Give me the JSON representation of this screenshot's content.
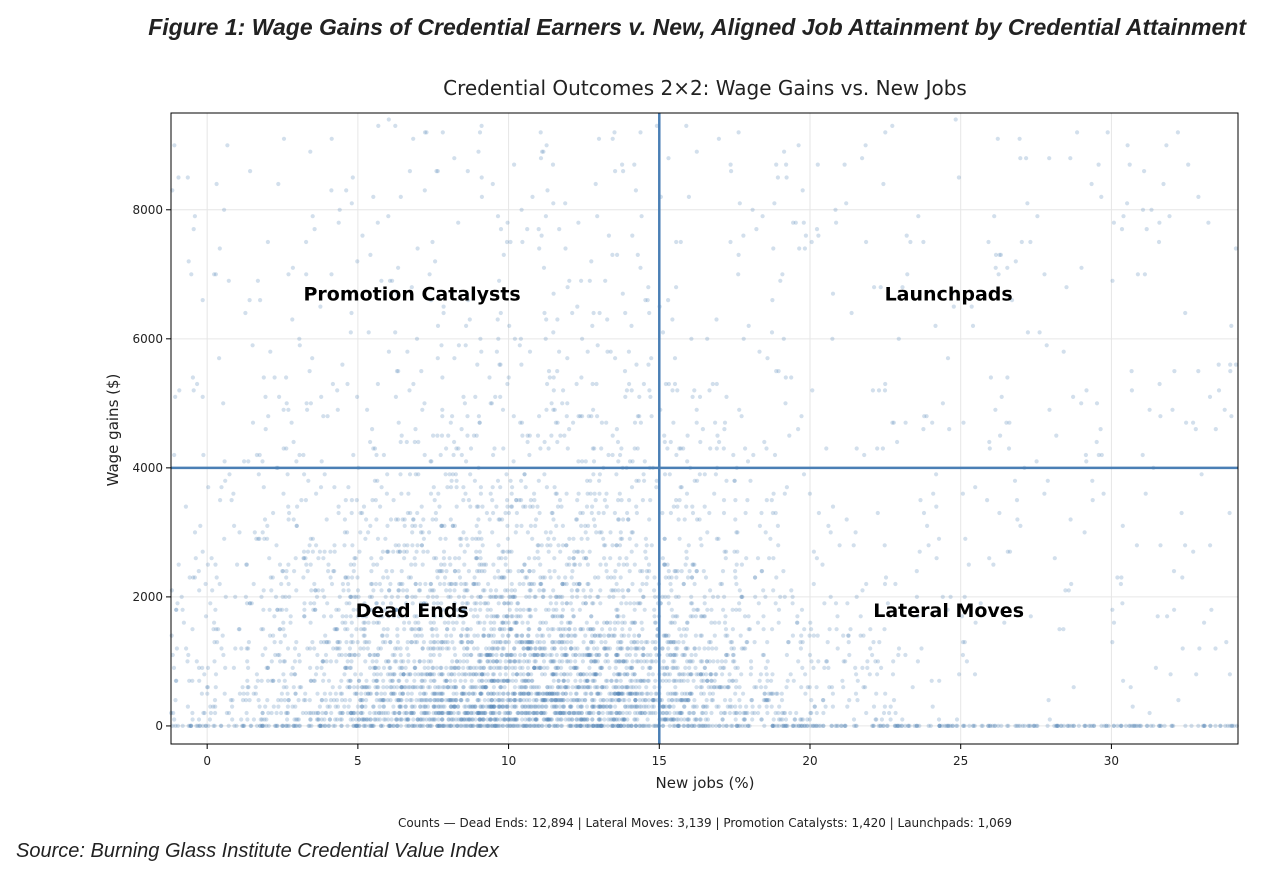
{
  "figure_title": "Figure 1: Wage Gains of Credential Earners v. New, Aligned Job Attainment by Credential Attainment",
  "source": "Source: Burning Glass Institute Credential Value Index",
  "colors": {
    "points": "#4a7fb5",
    "divider": "#4a7fb5",
    "grid": "#e6e6e6"
  },
  "chart_data": {
    "type": "scatter",
    "title": "Credential Outcomes 2×2: Wage Gains vs. New Jobs",
    "xlabel": "New jobs (%)",
    "ylabel": "Wage gains ($)",
    "xlim": [
      -1.2,
      34.2
    ],
    "ylim": [
      -280,
      9500
    ],
    "xticks": [
      0,
      5,
      10,
      15,
      20,
      25,
      30
    ],
    "yticks": [
      0,
      2000,
      4000,
      6000,
      8000
    ],
    "grid": true,
    "thresholds": {
      "x": 15,
      "y": 4000
    },
    "quadrants": [
      {
        "label": "Promotion Catalysts",
        "x": 6.8,
        "y": 6700
      },
      {
        "label": "Launchpads",
        "x": 24.6,
        "y": 6700
      },
      {
        "label": "Dead Ends",
        "x": 6.8,
        "y": 1800
      },
      {
        "label": "Lateral Moves",
        "x": 24.6,
        "y": 1800
      }
    ],
    "counts_note": "Counts — Dead Ends: 12,894 | Lateral Moves: 3,139 | Promotion Catalysts: 1,420 | Launchpads: 1,069",
    "counts": {
      "Dead Ends": 12894,
      "Lateral Moves": 3139,
      "Promotion Catalysts": 1420,
      "Launchpads": 1069
    },
    "distribution": {
      "note": "Dense point cloud; approximate shape of plotted points",
      "x_center": 10.5,
      "x_spread": 5.0,
      "y_median": 1500,
      "y_max": 9400,
      "zero_wage_band": true,
      "sample_points_rendered": 5200
    }
  }
}
